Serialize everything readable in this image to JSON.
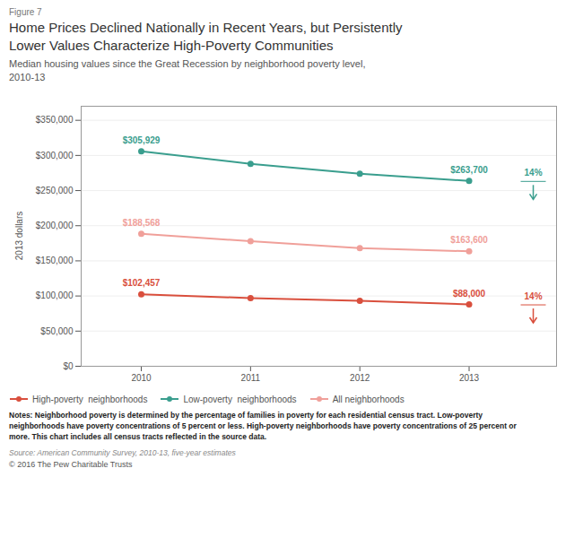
{
  "chart_data": {
    "type": "line",
    "figure_label": "Figure 7",
    "title": "Home Prices Declined Nationally in Recent Years, but Persistently\nLower Values Characterize High-Poverty Communities",
    "subtitle": "Median housing values since the Great Recession by neighborhood poverty level,\n2010-13",
    "ylabel": "2013 dollars",
    "x": [
      2010,
      2011,
      2012,
      2013
    ],
    "xlim": [
      2009.45,
      2013.8
    ],
    "xticks": [
      2010,
      2011,
      2012,
      2013
    ],
    "ylim": [
      0,
      370000
    ],
    "yticks": [
      {
        "value": 0,
        "label": "$0"
      },
      {
        "value": 50000,
        "label": "$50,000"
      },
      {
        "value": 100000,
        "label": "$100,000"
      },
      {
        "value": 150000,
        "label": "$150,000"
      },
      {
        "value": 200000,
        "label": "$200,000"
      },
      {
        "value": 250000,
        "label": "$250,000"
      },
      {
        "value": 300000,
        "label": "$300,000"
      },
      {
        "value": 350000,
        "label": "$350,000"
      }
    ],
    "grid": true,
    "legend": "bottom",
    "marker": "circle",
    "series": [
      {
        "name": "High-poverty  neighborhoods",
        "color": "#d94f3d",
        "values": [
          102457,
          97000,
          93000,
          88000
        ],
        "value_labels": [
          "$102,457",
          null,
          null,
          "$88,000"
        ]
      },
      {
        "name": "Low-poverty  neighborhoods",
        "color": "#3a9e8e",
        "values": [
          305929,
          288000,
          274000,
          263700
        ],
        "value_labels": [
          "$305,929",
          null,
          null,
          "$263,700"
        ]
      },
      {
        "name": "All neighborhoods",
        "color": "#f0a09a",
        "values": [
          188568,
          178000,
          168000,
          163600
        ],
        "value_labels": [
          "$188,568",
          null,
          null,
          "$163,600"
        ]
      }
    ],
    "annotations": [
      {
        "series": "Low-poverty  neighborhoods",
        "text": "14%"
      },
      {
        "series": "High-poverty  neighborhoods",
        "text": "14%"
      }
    ],
    "notes": "Notes: Neighborhood poverty is determined by the percentage of families in poverty for each residential census tract. Low-poverty\nneighborhoods have poverty concentrations of 5 percent or less. High-poverty neighborhoods have poverty concentrations of 25 percent or\nmore. This chart includes all census tracts reflected in the source data.",
    "source": "Source: American Community Survey, 2010-13, five-year estimates",
    "copyright": "© 2016 The Pew Charitable Trusts"
  }
}
